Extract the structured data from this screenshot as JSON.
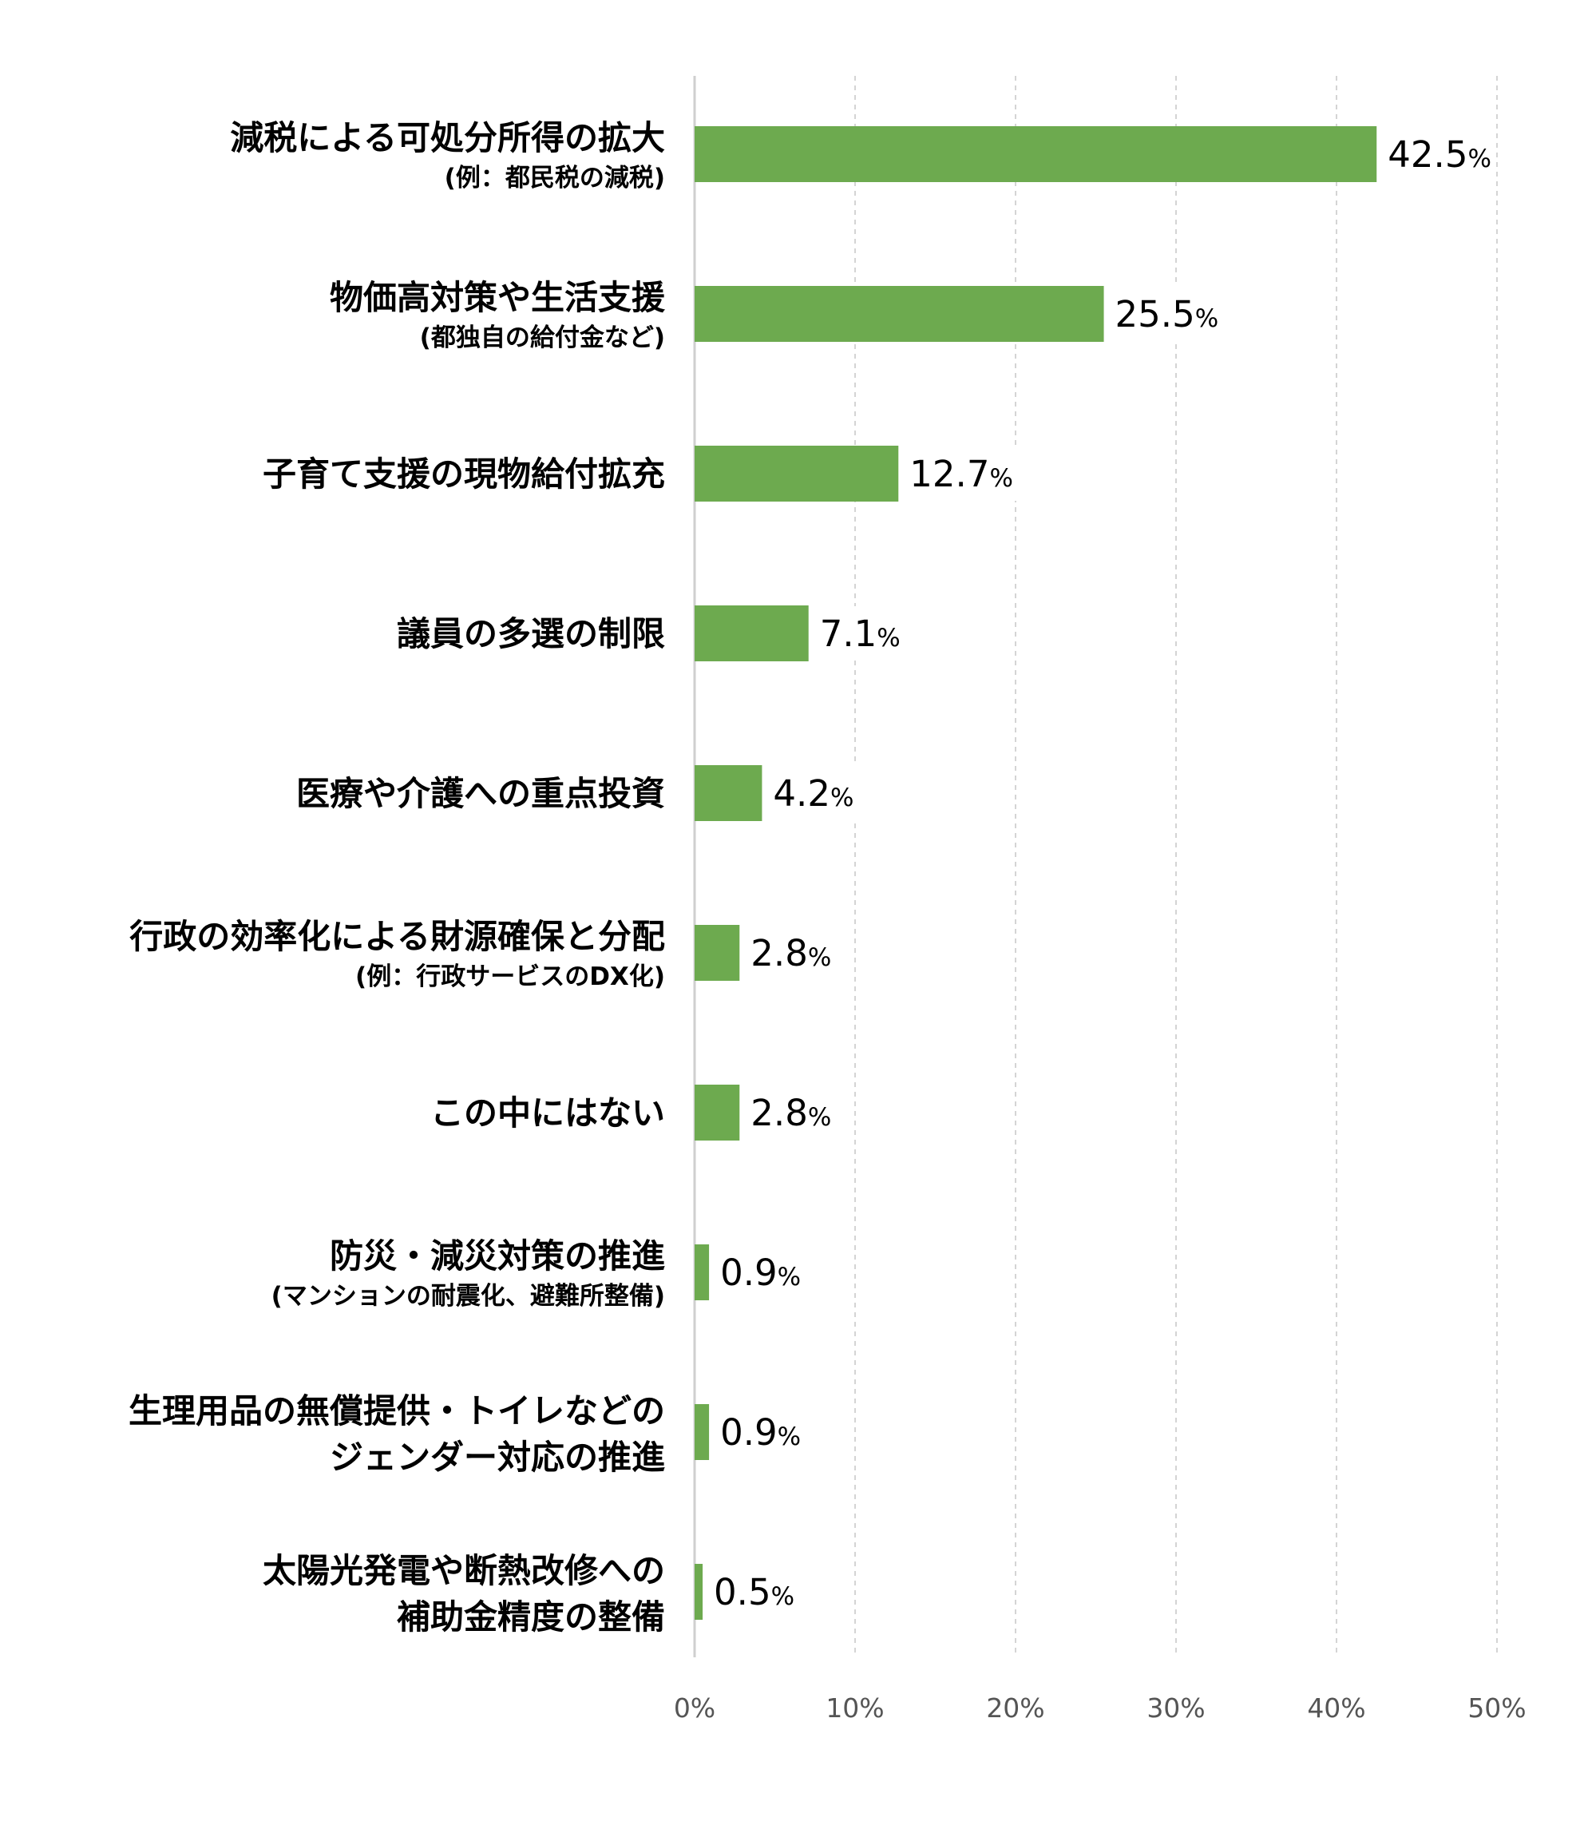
{
  "chart_data": {
    "type": "bar",
    "orientation": "horizontal",
    "bar_color": "#6daa4f",
    "categories": [
      {
        "label": "減税による可処分所得の拡大",
        "sub": "(例：都民税の減税)"
      },
      {
        "label": "物価高対策や生活支援",
        "sub": "(都独自の給付金など)"
      },
      {
        "label": "子育て支援の現物給付拡充"
      },
      {
        "label": "議員の多選の制限"
      },
      {
        "label": "医療や介護への重点投資"
      },
      {
        "label": "行政の効率化による財源確保と分配",
        "sub": "(例：行政サービスのDX化)"
      },
      {
        "label": "この中にはない"
      },
      {
        "label": "防災・減災対策の推進",
        "sub": "(マンションの耐震化、避難所整備)"
      },
      {
        "label": "生理用品の無償提供・トイレなどの",
        "label2": "ジェンダー対応の推進"
      },
      {
        "label": "太陽光発電や断熱改修への",
        "label2": "補助金精度の整備"
      }
    ],
    "values": [
      42.5,
      25.5,
      12.7,
      7.1,
      4.2,
      2.8,
      2.8,
      0.9,
      0.9,
      0.5
    ],
    "value_labels": [
      "42.5",
      "25.5",
      "12.7",
      "7.1",
      "4.2",
      "2.8",
      "2.8",
      "0.9",
      "0.9",
      "0.5"
    ],
    "value_suffix": "%",
    "xlim": [
      0,
      50
    ],
    "x_ticks": [
      "0%",
      "10%",
      "20%",
      "30%",
      "40%",
      "50%"
    ],
    "grid": true,
    "legend": "none"
  }
}
